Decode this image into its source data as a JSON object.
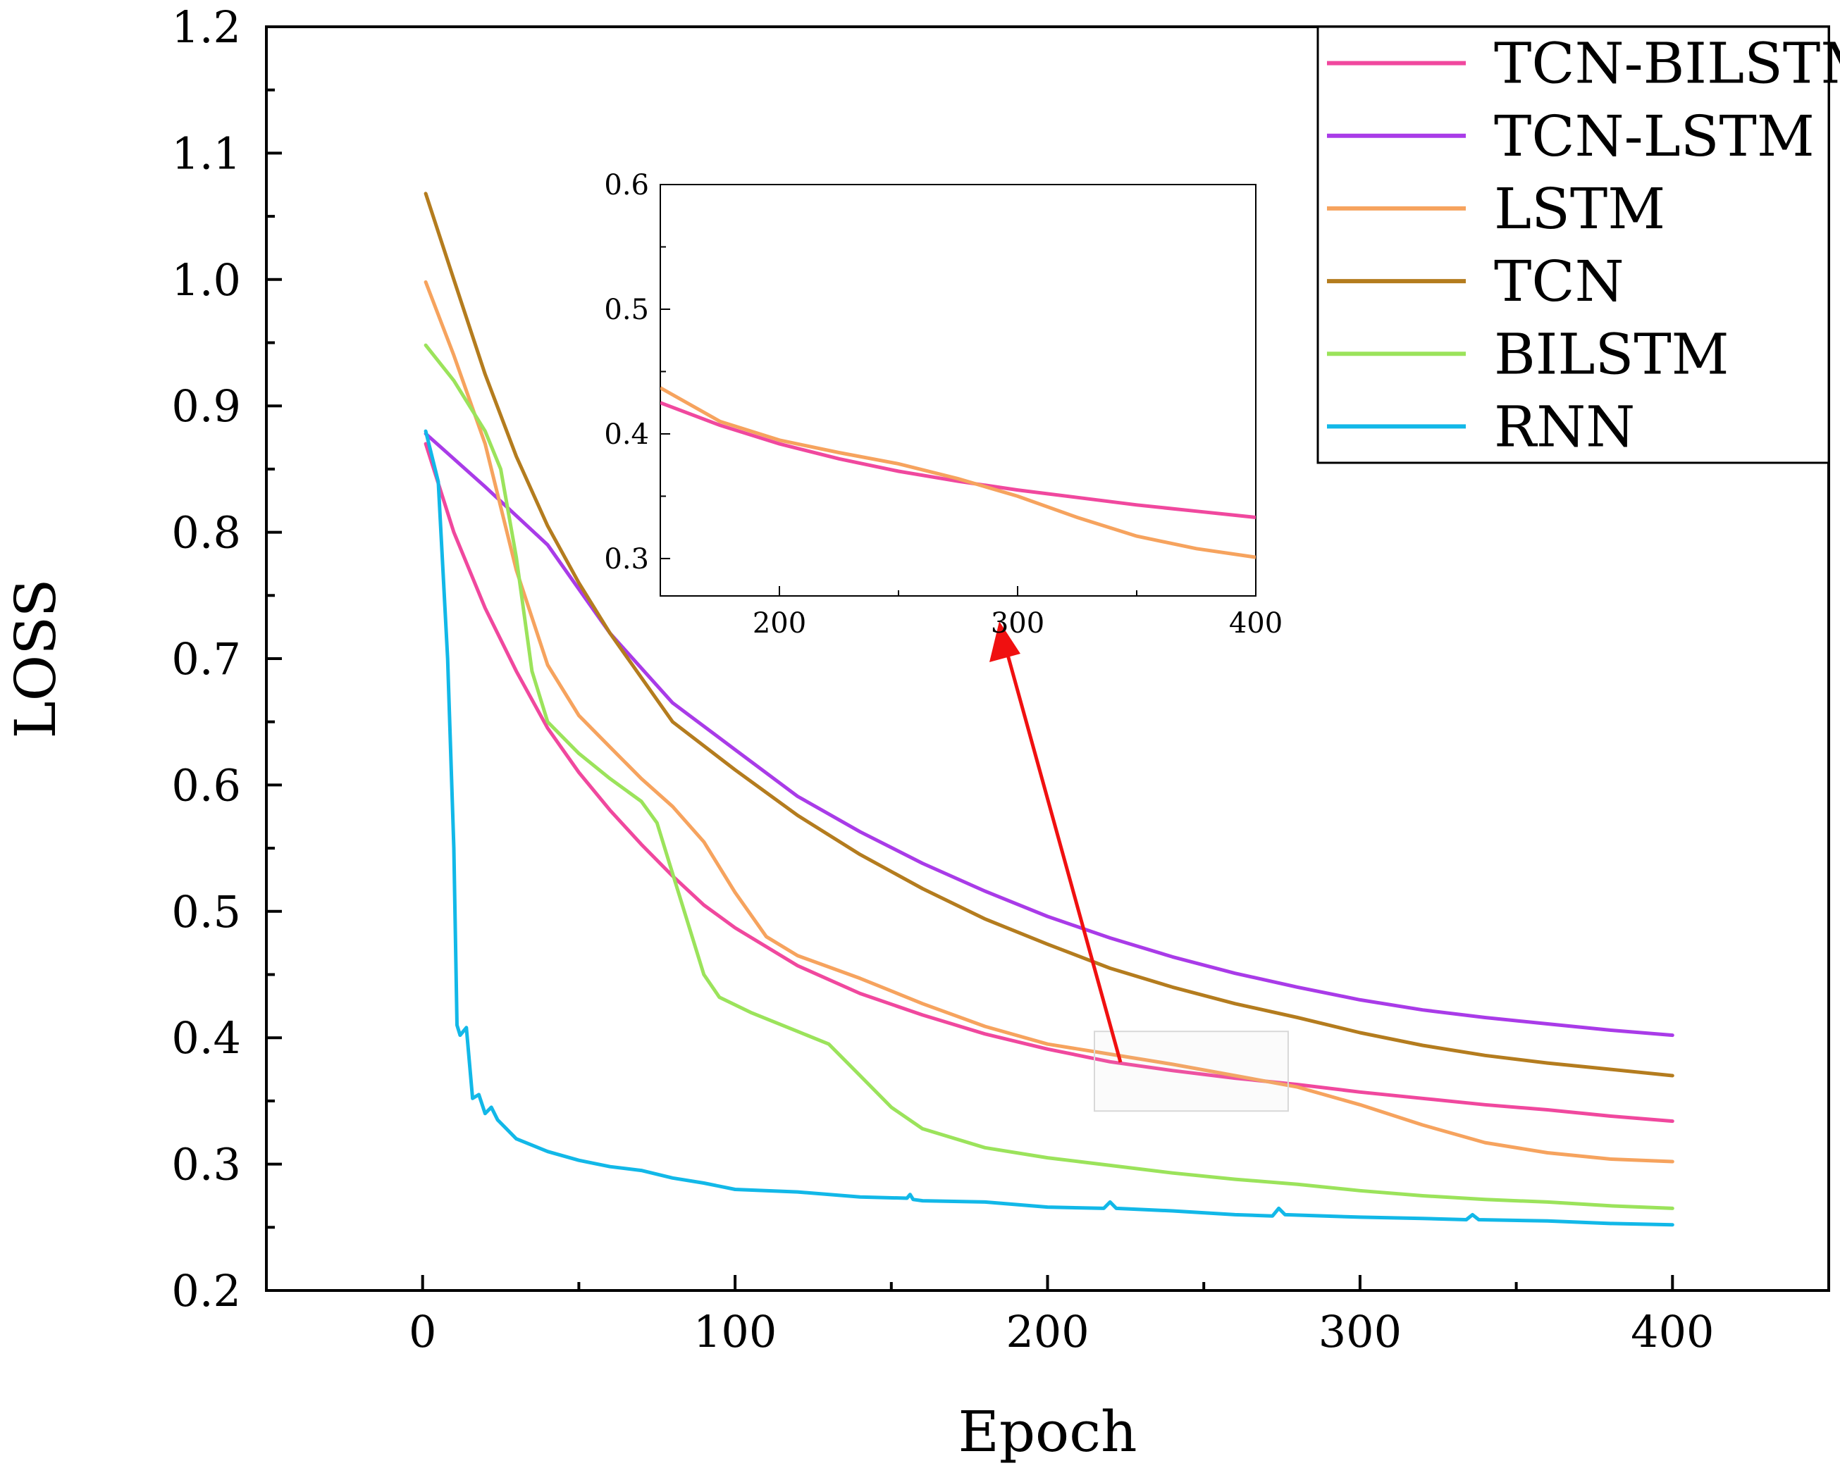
{
  "chart_data": {
    "type": "line",
    "xlabel": "Epoch",
    "ylabel": "LOSS",
    "xlim": [
      -50,
      450
    ],
    "ylim": [
      0.2,
      1.2
    ],
    "xticks": [
      0,
      100,
      200,
      300,
      400
    ],
    "xtick_labels": [
      "0",
      "100",
      "200",
      "300",
      "400"
    ],
    "yticks": [
      0.2,
      0.3,
      0.4,
      0.5,
      0.6,
      0.7,
      0.8,
      0.9,
      1.0,
      1.1,
      1.2
    ],
    "ytick_labels": [
      "0.2",
      "0.3",
      "0.4",
      "0.5",
      "0.6",
      "0.7",
      "0.8",
      "0.9",
      "1.0",
      "1.1",
      "1.2"
    ],
    "legend_position": "top-right",
    "series": [
      {
        "name": "TCN-BILSTM",
        "color": "#f0489e",
        "points": [
          [
            1,
            0.87
          ],
          [
            10,
            0.8
          ],
          [
            20,
            0.74
          ],
          [
            30,
            0.69
          ],
          [
            40,
            0.645
          ],
          [
            50,
            0.61
          ],
          [
            60,
            0.58
          ],
          [
            70,
            0.553
          ],
          [
            80,
            0.528
          ],
          [
            90,
            0.505
          ],
          [
            100,
            0.487
          ],
          [
            120,
            0.457
          ],
          [
            140,
            0.435
          ],
          [
            160,
            0.418
          ],
          [
            180,
            0.403
          ],
          [
            200,
            0.391
          ],
          [
            220,
            0.381
          ],
          [
            240,
            0.374
          ],
          [
            260,
            0.368
          ],
          [
            280,
            0.363
          ],
          [
            300,
            0.357
          ],
          [
            320,
            0.352
          ],
          [
            340,
            0.347
          ],
          [
            360,
            0.343
          ],
          [
            380,
            0.338
          ],
          [
            400,
            0.334
          ]
        ]
      },
      {
        "name": "TCN-LSTM",
        "color": "#a93be8",
        "points": [
          [
            1,
            0.878
          ],
          [
            20,
            0.836
          ],
          [
            40,
            0.79
          ],
          [
            60,
            0.72
          ],
          [
            80,
            0.665
          ],
          [
            100,
            0.628
          ],
          [
            120,
            0.591
          ],
          [
            140,
            0.563
          ],
          [
            160,
            0.538
          ],
          [
            180,
            0.516
          ],
          [
            200,
            0.496
          ],
          [
            220,
            0.479
          ],
          [
            240,
            0.464
          ],
          [
            260,
            0.451
          ],
          [
            280,
            0.44
          ],
          [
            300,
            0.43
          ],
          [
            320,
            0.422
          ],
          [
            340,
            0.416
          ],
          [
            360,
            0.411
          ],
          [
            380,
            0.406
          ],
          [
            400,
            0.402
          ]
        ]
      },
      {
        "name": "LSTM",
        "color": "#f6a35e",
        "points": [
          [
            1,
            0.998
          ],
          [
            10,
            0.94
          ],
          [
            20,
            0.87
          ],
          [
            30,
            0.77
          ],
          [
            40,
            0.695
          ],
          [
            50,
            0.655
          ],
          [
            60,
            0.63
          ],
          [
            70,
            0.605
          ],
          [
            80,
            0.583
          ],
          [
            90,
            0.555
          ],
          [
            100,
            0.515
          ],
          [
            110,
            0.48
          ],
          [
            120,
            0.465
          ],
          [
            140,
            0.447
          ],
          [
            160,
            0.427
          ],
          [
            180,
            0.409
          ],
          [
            200,
            0.395
          ],
          [
            220,
            0.387
          ],
          [
            240,
            0.379
          ],
          [
            260,
            0.37
          ],
          [
            280,
            0.361
          ],
          [
            300,
            0.347
          ],
          [
            320,
            0.331
          ],
          [
            340,
            0.317
          ],
          [
            360,
            0.309
          ],
          [
            380,
            0.304
          ],
          [
            400,
            0.302
          ]
        ]
      },
      {
        "name": "TCN",
        "color": "#b47c1e",
        "points": [
          [
            1,
            1.068
          ],
          [
            10,
            1.0
          ],
          [
            20,
            0.925
          ],
          [
            30,
            0.86
          ],
          [
            40,
            0.805
          ],
          [
            50,
            0.76
          ],
          [
            60,
            0.72
          ],
          [
            80,
            0.65
          ],
          [
            100,
            0.612
          ],
          [
            120,
            0.576
          ],
          [
            140,
            0.545
          ],
          [
            160,
            0.518
          ],
          [
            180,
            0.494
          ],
          [
            200,
            0.474
          ],
          [
            220,
            0.455
          ],
          [
            240,
            0.44
          ],
          [
            260,
            0.427
          ],
          [
            280,
            0.416
          ],
          [
            300,
            0.404
          ],
          [
            320,
            0.394
          ],
          [
            340,
            0.386
          ],
          [
            360,
            0.38
          ],
          [
            380,
            0.375
          ],
          [
            400,
            0.37
          ]
        ]
      },
      {
        "name": "BILSTM",
        "color": "#9be35b",
        "points": [
          [
            1,
            0.948
          ],
          [
            10,
            0.92
          ],
          [
            20,
            0.88
          ],
          [
            25,
            0.85
          ],
          [
            30,
            0.78
          ],
          [
            35,
            0.69
          ],
          [
            40,
            0.65
          ],
          [
            50,
            0.625
          ],
          [
            60,
            0.605
          ],
          [
            70,
            0.587
          ],
          [
            75,
            0.57
          ],
          [
            80,
            0.53
          ],
          [
            85,
            0.49
          ],
          [
            90,
            0.45
          ],
          [
            95,
            0.432
          ],
          [
            105,
            0.42
          ],
          [
            120,
            0.405
          ],
          [
            130,
            0.395
          ],
          [
            140,
            0.37
          ],
          [
            150,
            0.345
          ],
          [
            160,
            0.328
          ],
          [
            180,
            0.313
          ],
          [
            200,
            0.305
          ],
          [
            220,
            0.299
          ],
          [
            240,
            0.293
          ],
          [
            260,
            0.288
          ],
          [
            280,
            0.284
          ],
          [
            300,
            0.279
          ],
          [
            320,
            0.275
          ],
          [
            340,
            0.272
          ],
          [
            360,
            0.27
          ],
          [
            380,
            0.267
          ],
          [
            400,
            0.265
          ]
        ]
      },
      {
        "name": "RNN",
        "color": "#12b8e8",
        "points": [
          [
            1,
            0.88
          ],
          [
            5,
            0.84
          ],
          [
            8,
            0.7
          ],
          [
            10,
            0.55
          ],
          [
            11,
            0.41
          ],
          [
            12,
            0.402
          ],
          [
            14,
            0.408
          ],
          [
            15,
            0.38
          ],
          [
            16,
            0.352
          ],
          [
            18,
            0.355
          ],
          [
            20,
            0.34
          ],
          [
            22,
            0.345
          ],
          [
            24,
            0.335
          ],
          [
            26,
            0.33
          ],
          [
            30,
            0.32
          ],
          [
            40,
            0.31
          ],
          [
            50,
            0.303
          ],
          [
            60,
            0.298
          ],
          [
            70,
            0.295
          ],
          [
            80,
            0.289
          ],
          [
            90,
            0.285
          ],
          [
            100,
            0.28
          ],
          [
            120,
            0.278
          ],
          [
            140,
            0.274
          ],
          [
            155,
            0.273
          ],
          [
            156,
            0.276
          ],
          [
            157,
            0.272
          ],
          [
            160,
            0.271
          ],
          [
            180,
            0.27
          ],
          [
            200,
            0.266
          ],
          [
            218,
            0.265
          ],
          [
            220,
            0.27
          ],
          [
            222,
            0.265
          ],
          [
            240,
            0.263
          ],
          [
            260,
            0.26
          ],
          [
            272,
            0.259
          ],
          [
            274,
            0.265
          ],
          [
            276,
            0.26
          ],
          [
            300,
            0.258
          ],
          [
            320,
            0.257
          ],
          [
            334,
            0.256
          ],
          [
            336,
            0.26
          ],
          [
            338,
            0.256
          ],
          [
            360,
            0.255
          ],
          [
            380,
            0.253
          ],
          [
            400,
            0.252
          ]
        ]
      }
    ],
    "inset": {
      "xlim": [
        150,
        400
      ],
      "ylim": [
        0.27,
        0.6
      ],
      "xticks": [
        200,
        300,
        400
      ],
      "xtick_labels": [
        "200",
        "300",
        "400"
      ],
      "yticks": [
        0.3,
        0.4,
        0.5,
        0.6
      ],
      "ytick_labels": [
        "0.3",
        "0.4",
        "0.5",
        "0.6"
      ],
      "zoom_box": {
        "x": [
          215,
          277
        ],
        "y": [
          0.342,
          0.405
        ]
      },
      "series": [
        {
          "name": "TCN-BILSTM",
          "color": "#f0489e",
          "points": [
            [
              150,
              0.425
            ],
            [
              175,
              0.407
            ],
            [
              200,
              0.392
            ],
            [
              225,
              0.38
            ],
            [
              250,
              0.37
            ],
            [
              275,
              0.362
            ],
            [
              300,
              0.355
            ],
            [
              325,
              0.349
            ],
            [
              350,
              0.343
            ],
            [
              375,
              0.338
            ],
            [
              400,
              0.333
            ]
          ]
        },
        {
          "name": "LSTM",
          "color": "#f6a35e",
          "points": [
            [
              150,
              0.437
            ],
            [
              175,
              0.41
            ],
            [
              200,
              0.395
            ],
            [
              225,
              0.385
            ],
            [
              250,
              0.376
            ],
            [
              275,
              0.364
            ],
            [
              300,
              0.35
            ],
            [
              325,
              0.333
            ],
            [
              350,
              0.318
            ],
            [
              375,
              0.308
            ],
            [
              400,
              0.301
            ]
          ]
        }
      ]
    }
  }
}
